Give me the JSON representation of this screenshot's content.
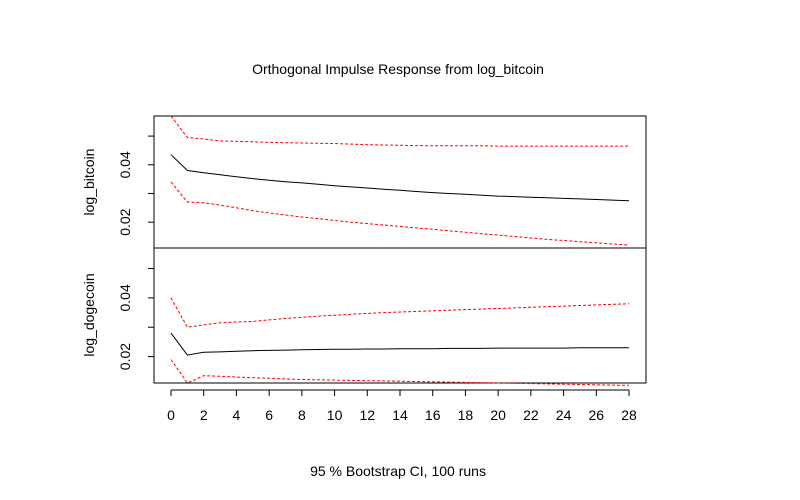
{
  "chart_data": {
    "type": "line",
    "title": "Orthogonal Impulse Response from log_bitcoin",
    "xlabel": "95 % Bootstrap CI,  100 runs",
    "xlim": [
      0,
      28
    ],
    "x_ticks": [
      0,
      2,
      4,
      6,
      8,
      10,
      12,
      14,
      16,
      18,
      20,
      22,
      24,
      26,
      28
    ],
    "x": [
      0,
      1,
      2,
      3,
      4,
      5,
      6,
      7,
      8,
      9,
      10,
      11,
      12,
      13,
      14,
      15,
      16,
      17,
      18,
      19,
      20,
      21,
      22,
      23,
      24,
      25,
      26,
      27,
      28
    ],
    "colors": {
      "response": "#000000",
      "ci": "#ff0000"
    },
    "panels": [
      {
        "ylabel": "log_bitcoin",
        "ylim": [
          0.011,
          0.057
        ],
        "y_ticks": [
          0.02,
          0.04
        ],
        "y_ticks_all": [
          0.02,
          0.03,
          0.04,
          0.05
        ],
        "series": [
          {
            "role": "response",
            "values": [
              0.0435,
              0.038,
              0.0372,
              0.0365,
              0.0358,
              0.0352,
              0.0346,
              0.0341,
              0.0337,
              0.0332,
              0.0327,
              0.0323,
              0.0319,
              0.0315,
              0.0311,
              0.0307,
              0.0303,
              0.03,
              0.0297,
              0.0294,
              0.0291,
              0.0289,
              0.0287,
              0.0285,
              0.0283,
              0.0281,
              0.0279,
              0.0277,
              0.0275
            ]
          },
          {
            "role": "upper",
            "values": [
              0.057,
              0.0495,
              0.049,
              0.0483,
              0.0482,
              0.048,
              0.0478,
              0.0477,
              0.0476,
              0.0475,
              0.0474,
              0.0472,
              0.047,
              0.0469,
              0.0468,
              0.0467,
              0.0466,
              0.0466,
              0.0466,
              0.0466,
              0.0465,
              0.0465,
              0.0465,
              0.0465,
              0.0465,
              0.0465,
              0.0465,
              0.0465,
              0.0465
            ]
          },
          {
            "role": "lower",
            "values": [
              0.034,
              0.027,
              0.0268,
              0.026,
              0.025,
              0.024,
              0.0232,
              0.0225,
              0.0218,
              0.0212,
              0.0206,
              0.02,
              0.0195,
              0.019,
              0.0185,
              0.018,
              0.0175,
              0.017,
              0.0165,
              0.016,
              0.0155,
              0.015,
              0.0145,
              0.014,
              0.0136,
              0.0132,
              0.0128,
              0.0124,
              0.012
            ]
          }
        ]
      },
      {
        "ylabel": "log_dogecoin",
        "ylim": [
          0.011,
          0.057
        ],
        "y_ticks": [
          0.02,
          0.04
        ],
        "y_ticks_all": [
          0.02,
          0.03,
          0.04,
          0.05
        ],
        "series": [
          {
            "role": "response",
            "values": [
              0.028,
              0.0205,
              0.0215,
              0.0216,
              0.0218,
              0.022,
              0.0221,
              0.0222,
              0.0223,
              0.0224,
              0.0225,
              0.0225,
              0.0226,
              0.0226,
              0.0227,
              0.0227,
              0.0227,
              0.0228,
              0.0228,
              0.0228,
              0.0229,
              0.0229,
              0.0229,
              0.0229,
              0.0229,
              0.023,
              0.023,
              0.023,
              0.023
            ]
          },
          {
            "role": "upper",
            "values": [
              0.04,
              0.03,
              0.0308,
              0.0315,
              0.0318,
              0.032,
              0.0325,
              0.033,
              0.0334,
              0.0338,
              0.0341,
              0.0344,
              0.0347,
              0.035,
              0.0352,
              0.0354,
              0.0356,
              0.0358,
              0.036,
              0.0362,
              0.0364,
              0.0366,
              0.0368,
              0.037,
              0.0372,
              0.0374,
              0.0376,
              0.0378,
              0.038
            ]
          },
          {
            "role": "lower",
            "values": [
              0.019,
              0.011,
              0.0135,
              0.0133,
              0.013,
              0.0128,
              0.0126,
              0.0124,
              0.0122,
              0.0121,
              0.012,
              0.0119,
              0.0118,
              0.0117,
              0.0116,
              0.0115,
              0.0114,
              0.0113,
              0.0112,
              0.0111,
              0.011,
              0.0109,
              0.0108,
              0.0107,
              0.0106,
              0.0105,
              0.0104,
              0.0103,
              0.0102
            ]
          }
        ]
      }
    ]
  }
}
